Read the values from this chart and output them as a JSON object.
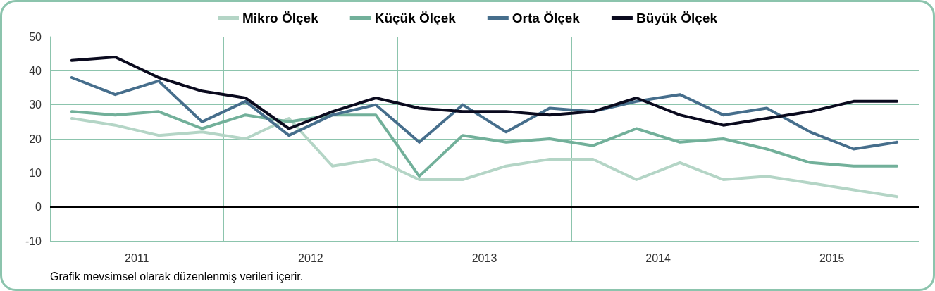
{
  "chart_data": {
    "type": "line",
    "x": [
      2011.125,
      2011.375,
      2011.625,
      2011.875,
      2012.125,
      2012.375,
      2012.625,
      2012.875,
      2013.125,
      2013.375,
      2013.625,
      2013.875,
      2014.125,
      2014.375,
      2014.625,
      2014.875,
      2015.125,
      2015.375,
      2015.625,
      2015.875
    ],
    "series": [
      {
        "name": "Mikro Ölçek",
        "color": "#b4d5c6",
        "values": [
          26,
          24,
          21,
          22,
          20,
          26,
          12,
          14,
          8,
          8,
          12,
          14,
          14,
          8,
          13,
          8,
          9,
          7,
          5,
          3
        ]
      },
      {
        "name": "Küçük Ölçek",
        "color": "#72b09a",
        "values": [
          28,
          27,
          28,
          23,
          27,
          25,
          27,
          27,
          9,
          21,
          19,
          20,
          18,
          23,
          19,
          20,
          17,
          13,
          12,
          12
        ]
      },
      {
        "name": "Orta Ölçek",
        "color": "#466e8c",
        "values": [
          38,
          33,
          37,
          25,
          31,
          21,
          27,
          30,
          19,
          30,
          22,
          29,
          28,
          31,
          33,
          27,
          29,
          22,
          17,
          19
        ]
      },
      {
        "name": "Büyük Ölçek",
        "color": "#0a0a1e",
        "values": [
          43,
          44,
          38,
          34,
          32,
          23,
          28,
          32,
          29,
          28,
          28,
          27,
          28,
          32,
          27,
          24,
          26,
          28,
          31,
          31
        ]
      }
    ],
    "xlim": [
      2011,
      2016
    ],
    "xticks": [
      {
        "value": 2011,
        "label": null
      },
      {
        "value": 2011.5,
        "label": "2011"
      },
      {
        "value": 2012,
        "label": null
      },
      {
        "value": 2012.5,
        "label": "2012"
      },
      {
        "value": 2013,
        "label": null
      },
      {
        "value": 2013.5,
        "label": "2013"
      },
      {
        "value": 2014,
        "label": null
      },
      {
        "value": 2014.5,
        "label": "2014"
      },
      {
        "value": 2015,
        "label": null
      },
      {
        "value": 2015.5,
        "label": "2015"
      },
      {
        "value": 2016,
        "label": null
      }
    ],
    "ylim": [
      -10,
      50
    ],
    "yticks": [
      -10,
      0,
      10,
      20,
      30,
      40,
      50
    ],
    "ref_lines": [
      {
        "axis": "y",
        "value": 0,
        "color": "#000000"
      }
    ],
    "annotations": [
      "Grafik mevsimsel olarak düzenlenmiş verileri içerir."
    ],
    "grid": true,
    "legend": "top",
    "marker": "none",
    "line_style": "solid"
  }
}
